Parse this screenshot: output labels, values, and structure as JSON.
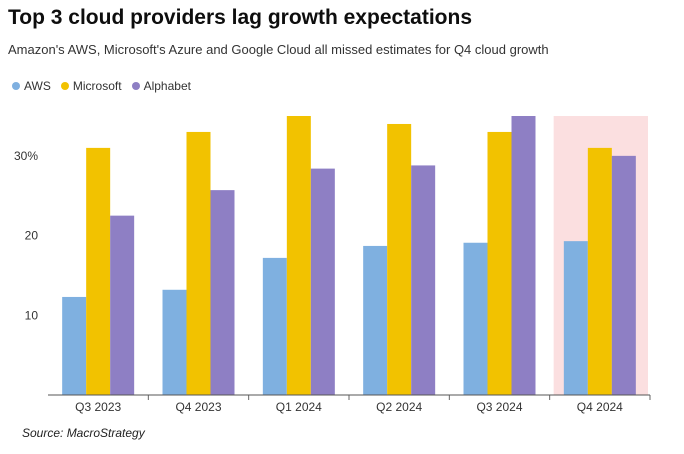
{
  "chart_data": {
    "type": "bar",
    "title": "Top 3 cloud providers lag growth expectations",
    "subtitle": "Amazon's AWS, Microsoft's Azure and Google Cloud all missed estimates for Q4 cloud growth",
    "categories": [
      "Q3 2023",
      "Q4 2023",
      "Q1 2024",
      "Q2 2024",
      "Q3 2024",
      "Q4 2024"
    ],
    "series": [
      {
        "name": "AWS",
        "color": "#7fb0e0",
        "values": [
          12.3,
          13.2,
          17.2,
          18.7,
          19.1,
          19.3
        ]
      },
      {
        "name": "Microsoft",
        "color": "#f2c200",
        "values": [
          31,
          33,
          35,
          34,
          33,
          31
        ]
      },
      {
        "name": "Alphabet",
        "color": "#8e7fc4",
        "values": [
          22.5,
          25.7,
          28.4,
          28.8,
          35,
          30
        ]
      }
    ],
    "yticks": [
      {
        "value": 10,
        "label": "10"
      },
      {
        "value": 20,
        "label": "20"
      },
      {
        "value": 30,
        "label": "30%"
      }
    ],
    "ylim": [
      0,
      35
    ],
    "highlight_category": "Q4 2024",
    "highlight_color": "#fbdfe0",
    "legend_position": "top-left",
    "grid": false
  },
  "source": "Source: MacroStrategy"
}
